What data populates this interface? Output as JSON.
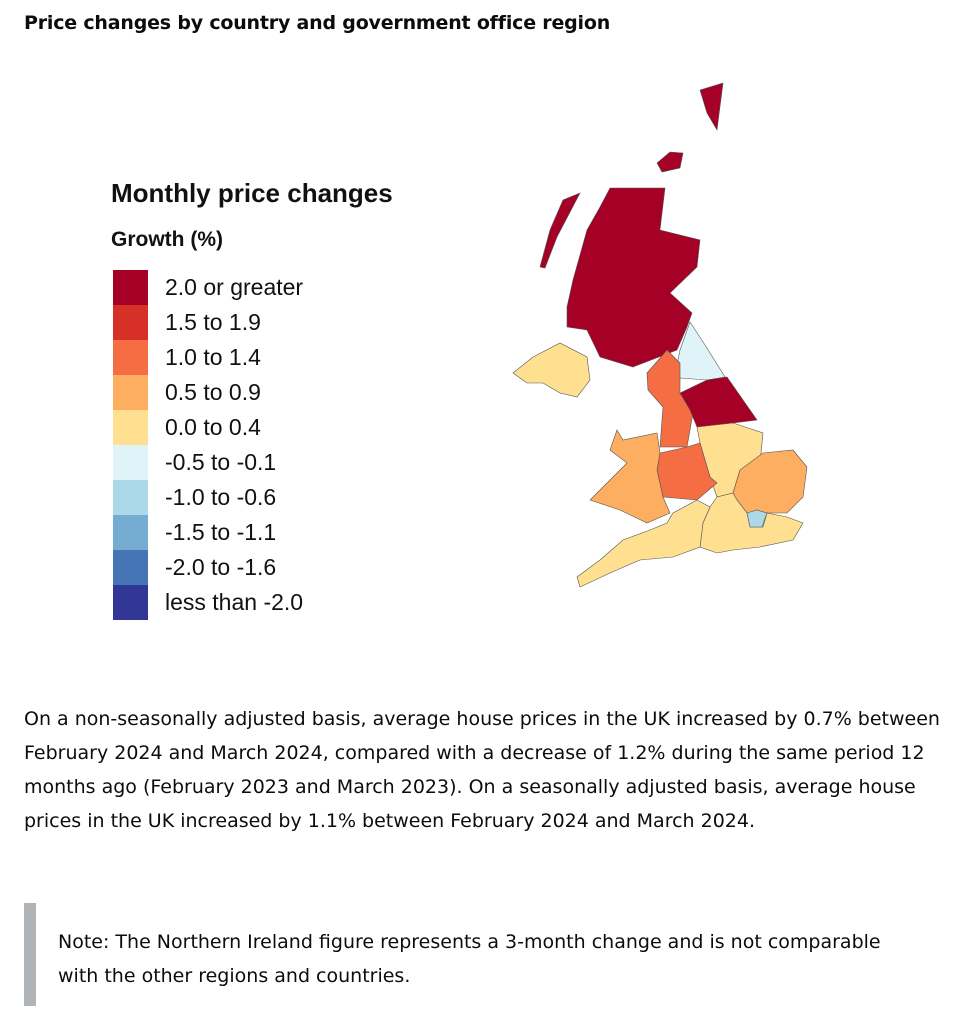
{
  "title": "Price changes by country and government office region",
  "legend": {
    "title": "Monthly price changes",
    "subtitle": "Growth (%)",
    "items": [
      {
        "label": "2.0 or greater",
        "color": "#a50026"
      },
      {
        "label": "1.5 to 1.9",
        "color": "#d73027"
      },
      {
        "label": "1.0 to 1.4",
        "color": "#f46d43"
      },
      {
        "label": "0.5 to 0.9",
        "color": "#fdae61"
      },
      {
        "label": "0.0 to 0.4",
        "color": "#fee090"
      },
      {
        "label": "-0.5 to -0.1",
        "color": "#e0f3f8"
      },
      {
        "label": "-1.0 to -0.6",
        "color": "#abd9e9"
      },
      {
        "label": "-1.5 to -1.1",
        "color": "#74add1"
      },
      {
        "label": "-2.0 to -1.6",
        "color": "#4575b4"
      },
      {
        "label": "less than -2.0",
        "color": "#313695"
      }
    ]
  },
  "regions": {
    "scotland": {
      "name": "Scotland",
      "band": 0
    },
    "north-east": {
      "name": "North East",
      "band": 5
    },
    "north-west": {
      "name": "North West",
      "band": 2
    },
    "yorkshire": {
      "name": "Yorkshire and The Humber",
      "band": 0
    },
    "east-midlands": {
      "name": "East Midlands",
      "band": 4
    },
    "west-midlands": {
      "name": "West Midlands",
      "band": 2
    },
    "wales": {
      "name": "Wales",
      "band": 3
    },
    "east": {
      "name": "East of England",
      "band": 3
    },
    "london": {
      "name": "London",
      "band": 6
    },
    "south-east": {
      "name": "South East",
      "band": 4
    },
    "south-west": {
      "name": "South West",
      "band": 4
    },
    "northern-ireland": {
      "name": "Northern Ireland",
      "band": 4
    }
  },
  "paragraph": "On a non-seasonally adjusted basis, average house prices in the UK increased by 0.7% between February 2024 and March 2024, compared with a decrease of 1.2% during the same period 12 months ago (February 2023 and March 2023). On a seasonally adjusted basis, average house prices in the UK increased by 1.1% between February 2024 and March 2024.",
  "note": "Note: The Northern Ireland figure represents a 3-month change and is not comparable with the other regions and countries."
}
